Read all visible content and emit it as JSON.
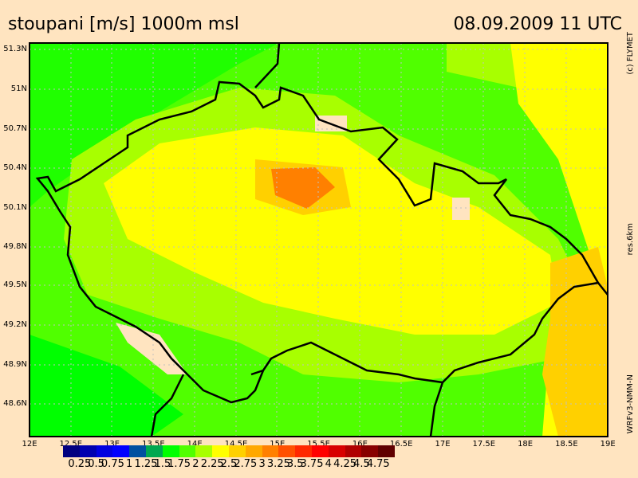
{
  "title": "stoupani [m/s] 1000m msl",
  "datetime": "08.09.2009 11 UTC",
  "credit": "(c) FLYMET",
  "resolution": "res.6km",
  "model": "WRFv3-NMM-N",
  "lat_labels": [
    "51.3N",
    "51N",
    "50.7N",
    "50.4N",
    "50.1N",
    "49.8N",
    "49.5N",
    "49.2N",
    "48.9N",
    "48.6N"
  ],
  "lon_labels": [
    "12E",
    "12.5E",
    "13E",
    "13.5E",
    "14E",
    "14.5E",
    "15E",
    "15.5E",
    "16E",
    "16.5E",
    "17E",
    "17.5E",
    "18E",
    "18.5E",
    "19E"
  ],
  "legend": {
    "colors": [
      "#000080",
      "#0000b0",
      "#0000e0",
      "#0000ff",
      "#0050a0",
      "#00a850",
      "#00ff00",
      "#50ff00",
      "#a8ff00",
      "#ffff00",
      "#ffd000",
      "#ffa800",
      "#ff8000",
      "#ff5000",
      "#ff2800",
      "#ff0000",
      "#d80000",
      "#b00000",
      "#880000",
      "#600000"
    ],
    "labels": [
      "0.25",
      "0.5",
      "0.75",
      "1",
      "1.25",
      "1.5",
      "1.75",
      "2",
      "2.25",
      "2.5",
      "2.75",
      "3",
      "3.25",
      "3.5",
      "3.75",
      "4",
      "4.25",
      "4.5",
      "4.75"
    ]
  }
}
